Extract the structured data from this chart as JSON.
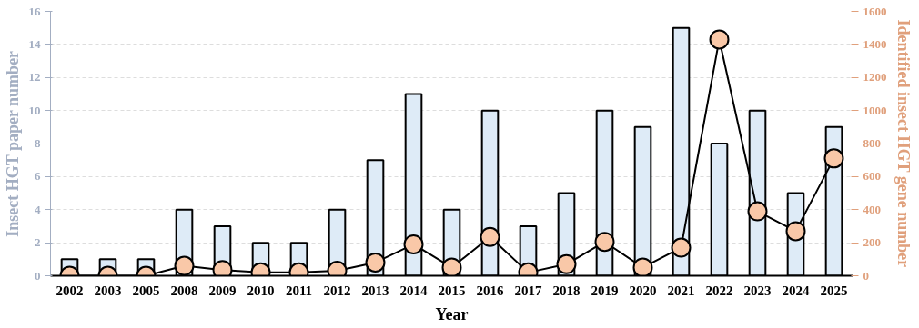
{
  "chart_data": {
    "type": "bar",
    "categories": [
      "2002",
      "2003",
      "2005",
      "2008",
      "2009",
      "2010",
      "2011",
      "2012",
      "2013",
      "2014",
      "2015",
      "2016",
      "2017",
      "2018",
      "2019",
      "2020",
      "2021",
      "2022",
      "2023",
      "2024",
      "2025"
    ],
    "xlabel": "Year",
    "ylabel": "Insect HGT paper number",
    "y2label": "Identified insect HGT gene number",
    "ylim": [
      0,
      16
    ],
    "yticks": [
      0,
      2,
      4,
      6,
      8,
      10,
      12,
      14,
      16
    ],
    "y2lim": [
      0,
      1600
    ],
    "y2ticks": [
      0,
      200,
      400,
      600,
      800,
      1000,
      1200,
      1400,
      1600
    ],
    "grid": "y",
    "series": [
      {
        "color": "#deebf7",
        "values": [
          1,
          1,
          1,
          4,
          3,
          2,
          2,
          4,
          7,
          11,
          4,
          10,
          3,
          5,
          10,
          9,
          15,
          8,
          10,
          5,
          9
        ]
      },
      {
        "type": "line",
        "axis": "y2",
        "color": "#f9c8a8",
        "marker": "circle",
        "values": [
          0,
          0,
          0,
          60,
          35,
          20,
          20,
          30,
          80,
          190,
          50,
          235,
          20,
          70,
          205,
          50,
          170,
          1430,
          390,
          270,
          710
        ]
      }
    ]
  }
}
